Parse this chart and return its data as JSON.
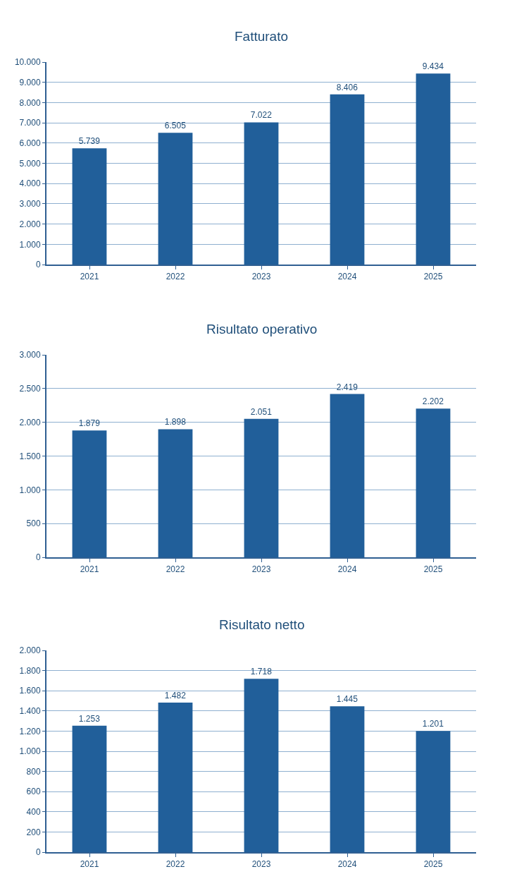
{
  "chart_data": [
    {
      "type": "bar",
      "title": "Fatturato",
      "categories": [
        "2021",
        "2022",
        "2023",
        "2024",
        "2025"
      ],
      "values": [
        5739,
        6505,
        7022,
        8406,
        9434
      ],
      "value_labels": [
        "5.739",
        "6.505",
        "7.022",
        "8.406",
        "9.434"
      ],
      "color": "#215f9a",
      "ylim": [
        0,
        10000
      ],
      "yticks": [
        {
          "value": 0,
          "label": "0"
        },
        {
          "value": 1000,
          "label": "1.000"
        },
        {
          "value": 2000,
          "label": "2.000"
        },
        {
          "value": 3000,
          "label": "3.000"
        },
        {
          "value": 4000,
          "label": "4.000"
        },
        {
          "value": 5000,
          "label": "5.000"
        },
        {
          "value": 6000,
          "label": "6.000"
        },
        {
          "value": 7000,
          "label": "7.000"
        },
        {
          "value": 8000,
          "label": "8.000"
        },
        {
          "value": 9000,
          "label": "9.000"
        },
        {
          "value": 10000,
          "label": "10.000"
        }
      ],
      "grid": "y"
    },
    {
      "type": "bar",
      "title": "Risultato operativo",
      "categories": [
        "2021",
        "2022",
        "2023",
        "2024",
        "2025"
      ],
      "values": [
        1879,
        1898,
        2051,
        2419,
        2202
      ],
      "value_labels": [
        "1.879",
        "1.898",
        "2.051",
        "2.419",
        "2.202"
      ],
      "color": "#215f9a",
      "ylim": [
        0,
        3000
      ],
      "yticks": [
        {
          "value": 0,
          "label": "0"
        },
        {
          "value": 500,
          "label": "500"
        },
        {
          "value": 1000,
          "label": "1.000"
        },
        {
          "value": 1500,
          "label": "1.500"
        },
        {
          "value": 2000,
          "label": "2.000"
        },
        {
          "value": 2500,
          "label": "2.500"
        },
        {
          "value": 3000,
          "label": "3.000"
        }
      ],
      "grid": "y"
    },
    {
      "type": "bar",
      "title": "Risultato netto",
      "categories": [
        "2021",
        "2022",
        "2023",
        "2024",
        "2025"
      ],
      "values": [
        1253,
        1482,
        1718,
        1445,
        1201
      ],
      "value_labels": [
        "1.253",
        "1.482",
        "1.718",
        "1.445",
        "1.201"
      ],
      "color": "#215f9a",
      "ylim": [
        0,
        2000
      ],
      "yticks": [
        {
          "value": 0,
          "label": "0"
        },
        {
          "value": 200,
          "label": "200"
        },
        {
          "value": 400,
          "label": "400"
        },
        {
          "value": 600,
          "label": "600"
        },
        {
          "value": 800,
          "label": "800"
        },
        {
          "value": 1000,
          "label": "1.000"
        },
        {
          "value": 1200,
          "label": "1.200"
        },
        {
          "value": 1400,
          "label": "1.400"
        },
        {
          "value": 1600,
          "label": "1.600"
        },
        {
          "value": 1800,
          "label": "1.800"
        },
        {
          "value": 2000,
          "label": "2.000"
        }
      ],
      "grid": "y"
    }
  ]
}
